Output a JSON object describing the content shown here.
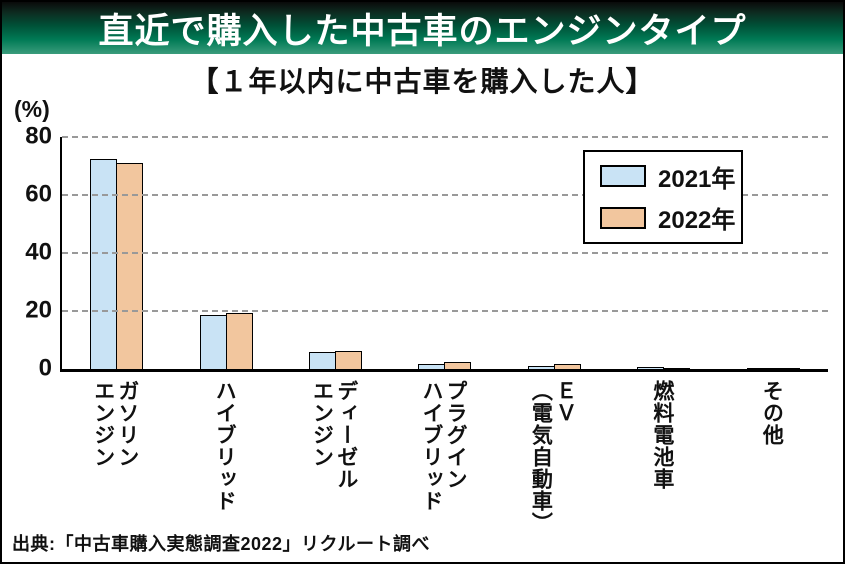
{
  "banner": {
    "title": "直近で購入した中古車のエンジンタイプ"
  },
  "subtitle": "【１年以内に中古車を購入した人】",
  "source": "出典:「中古車購入実態調査2022」リクルート調べ",
  "colors": {
    "banner_green": "#007a55",
    "bar_2021": "#c9e3f5",
    "bar_2022": "#f2c69e",
    "gridline": "#999999",
    "axis": "#000000"
  },
  "chart_data": {
    "type": "bar",
    "title": "直近で購入した中古車のエンジンタイプ",
    "subtitle": "【１年以内に中古車を購入した人】",
    "categories": [
      [
        "ガソリン",
        "エンジン"
      ],
      [
        "ハイブリッド"
      ],
      [
        "ディーゼル",
        "エンジン"
      ],
      [
        "プラグイン",
        "ハイブリッド"
      ],
      [
        "ＥＶ",
        "（電気自動車）"
      ],
      [
        "燃料電池車"
      ],
      [
        "その他"
      ]
    ],
    "series": [
      {
        "name": "2021年",
        "color": "#c9e3f5",
        "values": [
          72.4,
          18.6,
          5.9,
          1.8,
          1.2,
          0.6,
          0.2
        ]
      },
      {
        "name": "2022年",
        "color": "#f2c69e",
        "values": [
          71.0,
          19.4,
          6.2,
          2.3,
          1.7,
          0.3,
          0.2
        ]
      }
    ],
    "ylabel": "(%)",
    "ylim": [
      0,
      80
    ],
    "yticks": [
      0,
      20,
      40,
      60,
      80
    ],
    "grid": "horizontal-dashed",
    "legend_position": "upper-right"
  }
}
